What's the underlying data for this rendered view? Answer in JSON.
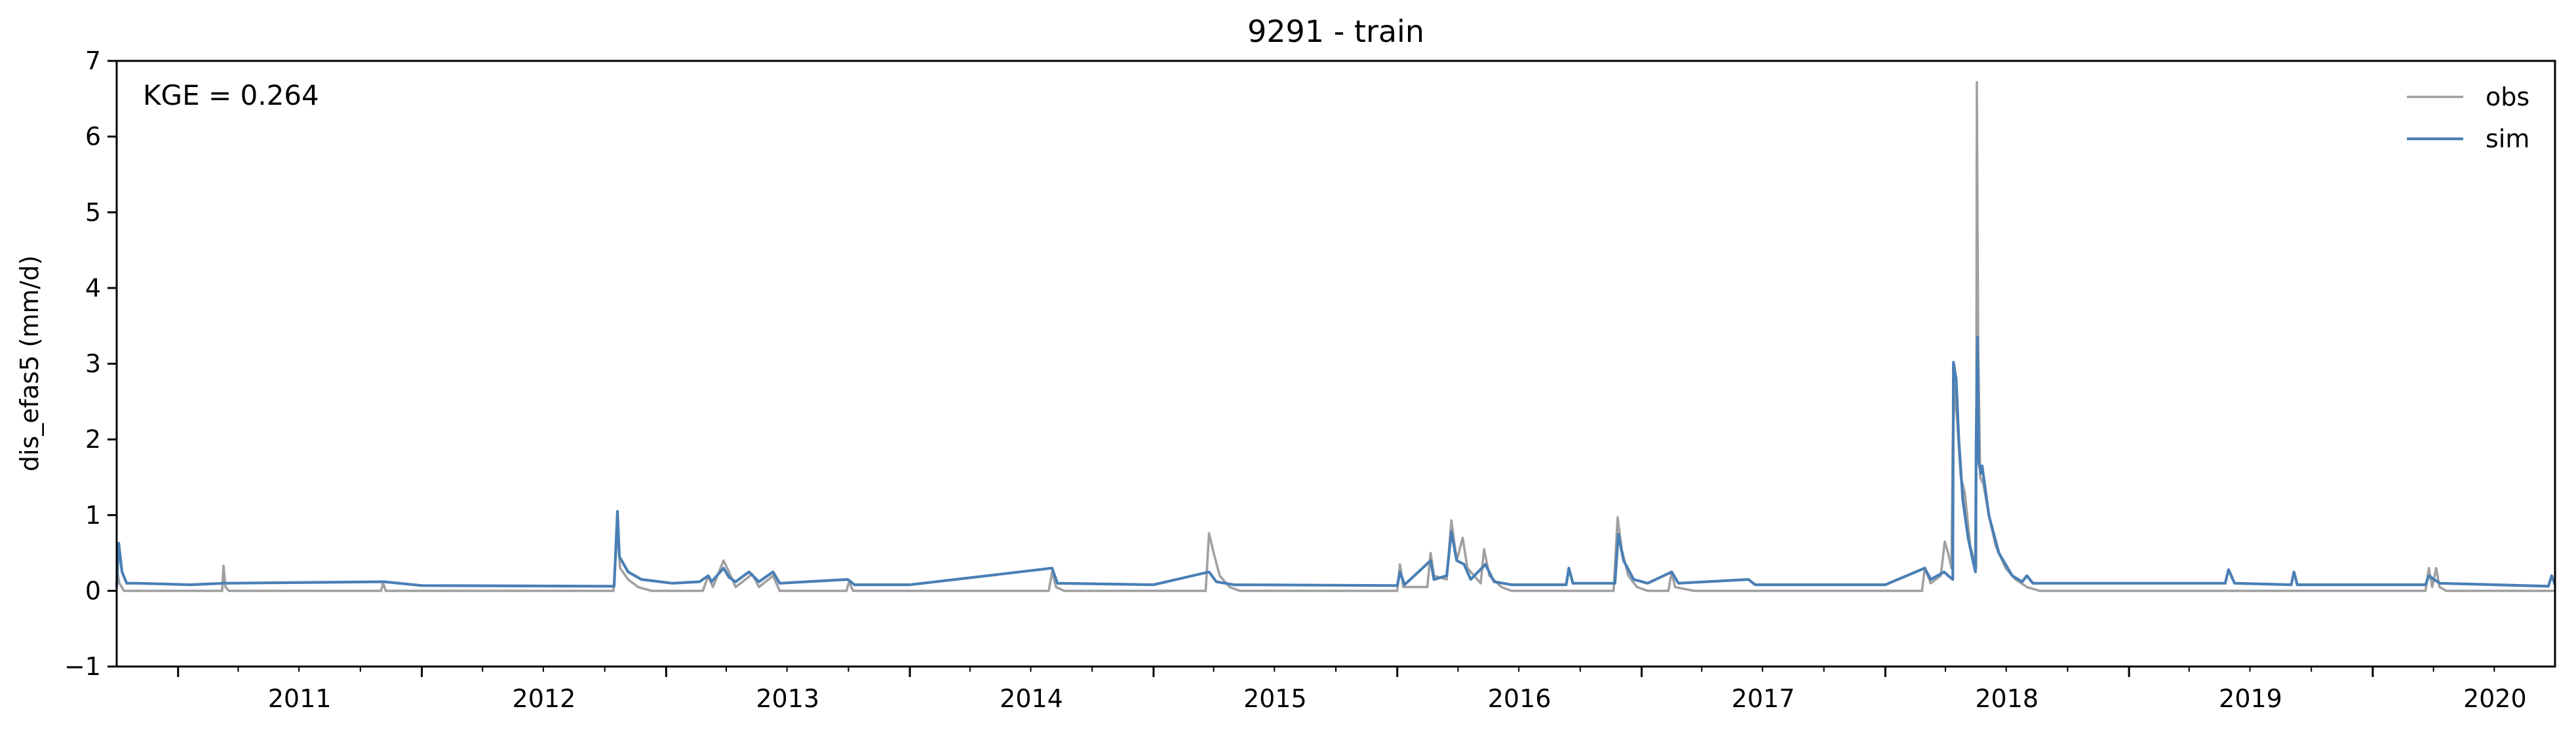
{
  "chart_data": {
    "type": "line",
    "title": "9291 - train",
    "xlabel": "",
    "ylabel": "dis_efas5 (mm/d)",
    "annotation": "KGE = 0.264",
    "xlim": [
      "2010-10-01",
      "2020-09-30"
    ],
    "ylim": [
      -1,
      7
    ],
    "yticks": [
      -1,
      0,
      1,
      2,
      3,
      4,
      5,
      6,
      7
    ],
    "ytick_labels": [
      "−1",
      "0",
      "1",
      "2",
      "3",
      "4",
      "5",
      "6",
      "7"
    ],
    "xticks": [
      "2011-01-01",
      "2012-01-01",
      "2013-01-01",
      "2014-01-01",
      "2015-01-01",
      "2016-01-01",
      "2017-01-01",
      "2018-01-01",
      "2019-01-01",
      "2020-01-01"
    ],
    "xtick_labels": [
      "2011",
      "2012",
      "2013",
      "2014",
      "2015",
      "2016",
      "2017",
      "2018",
      "2019",
      "2020"
    ],
    "grid": false,
    "legend": {
      "placement": "top-right",
      "entries": [
        "obs",
        "sim"
      ]
    },
    "colors": {
      "obs": "#a0a0a0",
      "sim": "#4a7fb5",
      "axes": "#000000"
    },
    "series": [
      {
        "name": "obs",
        "points": [
          [
            "2010-10-01",
            0.3
          ],
          [
            "2010-10-05",
            0.1
          ],
          [
            "2010-10-12",
            0.0
          ],
          [
            "2011-03-08",
            0.0
          ],
          [
            "2011-03-10",
            0.33
          ],
          [
            "2011-03-13",
            0.05
          ],
          [
            "2011-03-18",
            0.0
          ],
          [
            "2011-11-01",
            0.0
          ],
          [
            "2011-11-04",
            0.1
          ],
          [
            "2011-11-08",
            0.0
          ],
          [
            "2012-10-14",
            0.0
          ],
          [
            "2012-10-20",
            0.8
          ],
          [
            "2012-10-24",
            0.3
          ],
          [
            "2012-11-05",
            0.15
          ],
          [
            "2012-11-20",
            0.05
          ],
          [
            "2012-12-10",
            0.0
          ],
          [
            "2013-02-25",
            0.0
          ],
          [
            "2013-03-05",
            0.2
          ],
          [
            "2013-03-12",
            0.05
          ],
          [
            "2013-03-28",
            0.4
          ],
          [
            "2013-04-05",
            0.25
          ],
          [
            "2013-04-15",
            0.05
          ],
          [
            "2013-05-10",
            0.22
          ],
          [
            "2013-05-20",
            0.05
          ],
          [
            "2013-06-10",
            0.2
          ],
          [
            "2013-06-20",
            0.0
          ],
          [
            "2013-09-28",
            0.0
          ],
          [
            "2013-10-02",
            0.12
          ],
          [
            "2013-10-08",
            0.0
          ],
          [
            "2014-07-28",
            0.0
          ],
          [
            "2014-08-02",
            0.25
          ],
          [
            "2014-08-08",
            0.05
          ],
          [
            "2014-08-20",
            0.0
          ],
          [
            "2015-03-20",
            0.0
          ],
          [
            "2015-03-25",
            0.76
          ],
          [
            "2015-04-01",
            0.5
          ],
          [
            "2015-04-10",
            0.2
          ],
          [
            "2015-04-25",
            0.05
          ],
          [
            "2015-05-10",
            0.0
          ],
          [
            "2016-01-01",
            0.0
          ],
          [
            "2016-01-05",
            0.35
          ],
          [
            "2016-01-10",
            0.05
          ],
          [
            "2016-02-15",
            0.05
          ],
          [
            "2016-02-20",
            0.5
          ],
          [
            "2016-02-25",
            0.2
          ],
          [
            "2016-03-15",
            0.15
          ],
          [
            "2016-03-22",
            0.93
          ],
          [
            "2016-03-30",
            0.4
          ],
          [
            "2016-04-08",
            0.7
          ],
          [
            "2016-04-15",
            0.3
          ],
          [
            "2016-05-05",
            0.1
          ],
          [
            "2016-05-10",
            0.55
          ],
          [
            "2016-05-18",
            0.2
          ],
          [
            "2016-06-05",
            0.05
          ],
          [
            "2016-06-20",
            0.0
          ],
          [
            "2016-11-20",
            0.0
          ],
          [
            "2016-11-26",
            0.97
          ],
          [
            "2016-12-02",
            0.55
          ],
          [
            "2016-12-12",
            0.2
          ],
          [
            "2016-12-25",
            0.05
          ],
          [
            "2017-01-10",
            0.0
          ],
          [
            "2017-02-10",
            0.0
          ],
          [
            "2017-02-15",
            0.25
          ],
          [
            "2017-02-20",
            0.05
          ],
          [
            "2017-03-20",
            0.0
          ],
          [
            "2018-02-25",
            0.0
          ],
          [
            "2018-03-01",
            0.3
          ],
          [
            "2018-03-10",
            0.1
          ],
          [
            "2018-03-25",
            0.2
          ],
          [
            "2018-03-31",
            0.65
          ],
          [
            "2018-04-05",
            0.5
          ],
          [
            "2018-04-10",
            0.3
          ],
          [
            "2018-04-12",
            2.0
          ],
          [
            "2018-04-15",
            2.7
          ],
          [
            "2018-04-19",
            2.2
          ],
          [
            "2018-04-24",
            1.5
          ],
          [
            "2018-04-30",
            1.3
          ],
          [
            "2018-05-08",
            0.6
          ],
          [
            "2018-05-17",
            0.3
          ],
          [
            "2018-05-18",
            6.72
          ],
          [
            "2018-05-20",
            3.3
          ],
          [
            "2018-05-23",
            1.5
          ],
          [
            "2018-05-28",
            1.4
          ],
          [
            "2018-06-05",
            1.0
          ],
          [
            "2018-06-15",
            0.6
          ],
          [
            "2018-06-30",
            0.3
          ],
          [
            "2018-07-15",
            0.15
          ],
          [
            "2018-08-01",
            0.05
          ],
          [
            "2018-08-20",
            0.0
          ],
          [
            "2020-03-20",
            0.0
          ],
          [
            "2020-03-25",
            0.3
          ],
          [
            "2020-03-30",
            0.05
          ],
          [
            "2020-04-05",
            0.3
          ],
          [
            "2020-04-10",
            0.05
          ],
          [
            "2020-04-20",
            0.0
          ],
          [
            "2020-09-30",
            0.0
          ]
        ]
      },
      {
        "name": "sim",
        "points": [
          [
            "2010-10-01",
            0.05
          ],
          [
            "2010-10-04",
            0.63
          ],
          [
            "2010-10-09",
            0.25
          ],
          [
            "2010-10-16",
            0.1
          ],
          [
            "2010-11-01",
            0.1
          ],
          [
            "2011-01-20",
            0.08
          ],
          [
            "2011-03-10",
            0.1
          ],
          [
            "2011-11-05",
            0.12
          ],
          [
            "2012-01-01",
            0.07
          ],
          [
            "2012-10-15",
            0.06
          ],
          [
            "2012-10-20",
            1.05
          ],
          [
            "2012-10-23",
            0.45
          ],
          [
            "2012-11-05",
            0.25
          ],
          [
            "2012-11-25",
            0.15
          ],
          [
            "2013-01-10",
            0.1
          ],
          [
            "2013-02-20",
            0.12
          ],
          [
            "2013-03-05",
            0.2
          ],
          [
            "2013-03-10",
            0.12
          ],
          [
            "2013-03-28",
            0.3
          ],
          [
            "2013-04-05",
            0.18
          ],
          [
            "2013-04-15",
            0.12
          ],
          [
            "2013-05-05",
            0.25
          ],
          [
            "2013-05-20",
            0.12
          ],
          [
            "2013-06-10",
            0.25
          ],
          [
            "2013-06-20",
            0.1
          ],
          [
            "2013-09-30",
            0.15
          ],
          [
            "2013-10-10",
            0.08
          ],
          [
            "2014-01-01",
            0.08
          ],
          [
            "2014-08-02",
            0.3
          ],
          [
            "2014-08-10",
            0.1
          ],
          [
            "2015-01-01",
            0.08
          ],
          [
            "2015-03-25",
            0.25
          ],
          [
            "2015-04-05",
            0.12
          ],
          [
            "2015-05-01",
            0.08
          ],
          [
            "2016-01-01",
            0.07
          ],
          [
            "2016-01-05",
            0.25
          ],
          [
            "2016-01-12",
            0.08
          ],
          [
            "2016-02-20",
            0.4
          ],
          [
            "2016-02-25",
            0.15
          ],
          [
            "2016-03-15",
            0.2
          ],
          [
            "2016-03-22",
            0.78
          ],
          [
            "2016-03-30",
            0.4
          ],
          [
            "2016-04-10",
            0.35
          ],
          [
            "2016-04-20",
            0.15
          ],
          [
            "2016-05-12",
            0.35
          ],
          [
            "2016-05-25",
            0.12
          ],
          [
            "2016-06-20",
            0.08
          ],
          [
            "2016-09-10",
            0.08
          ],
          [
            "2016-09-14",
            0.3
          ],
          [
            "2016-09-20",
            0.1
          ],
          [
            "2016-11-22",
            0.1
          ],
          [
            "2016-11-27",
            0.75
          ],
          [
            "2016-12-05",
            0.4
          ],
          [
            "2016-12-20",
            0.15
          ],
          [
            "2017-01-10",
            0.1
          ],
          [
            "2017-02-15",
            0.25
          ],
          [
            "2017-02-25",
            0.1
          ],
          [
            "2017-06-10",
            0.15
          ],
          [
            "2017-06-20",
            0.08
          ],
          [
            "2018-01-01",
            0.08
          ],
          [
            "2018-03-01",
            0.3
          ],
          [
            "2018-03-10",
            0.15
          ],
          [
            "2018-03-30",
            0.25
          ],
          [
            "2018-04-05",
            0.2
          ],
          [
            "2018-04-12",
            0.15
          ],
          [
            "2018-04-13",
            3.02
          ],
          [
            "2018-04-17",
            2.8
          ],
          [
            "2018-04-21",
            2.0
          ],
          [
            "2018-04-27",
            1.2
          ],
          [
            "2018-05-05",
            0.7
          ],
          [
            "2018-05-12",
            0.4
          ],
          [
            "2018-05-16",
            0.25
          ],
          [
            "2018-05-17",
            2.0
          ],
          [
            "2018-05-19",
            3.35
          ],
          [
            "2018-05-21",
            1.7
          ],
          [
            "2018-05-24",
            1.55
          ],
          [
            "2018-05-26",
            1.65
          ],
          [
            "2018-06-05",
            1.0
          ],
          [
            "2018-06-20",
            0.5
          ],
          [
            "2018-07-10",
            0.2
          ],
          [
            "2018-07-25",
            0.12
          ],
          [
            "2018-08-01",
            0.2
          ],
          [
            "2018-08-10",
            0.1
          ],
          [
            "2019-05-25",
            0.1
          ],
          [
            "2019-05-30",
            0.28
          ],
          [
            "2019-06-08",
            0.1
          ],
          [
            "2019-09-01",
            0.08
          ],
          [
            "2019-09-05",
            0.25
          ],
          [
            "2019-09-10",
            0.08
          ],
          [
            "2020-03-20",
            0.08
          ],
          [
            "2020-03-25",
            0.2
          ],
          [
            "2020-04-10",
            0.1
          ],
          [
            "2020-09-20",
            0.06
          ],
          [
            "2020-09-25",
            0.2
          ],
          [
            "2020-09-30",
            0.08
          ]
        ]
      }
    ]
  }
}
